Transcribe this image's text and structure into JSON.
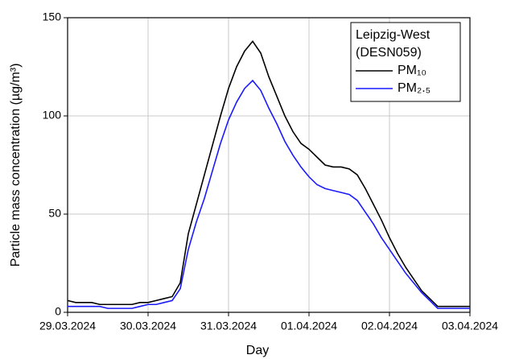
{
  "chart_data": {
    "type": "line",
    "x_label": "Day",
    "y_label": "Particle mass concentration (µg/m³)",
    "legend_title": [
      "Leipzig-West",
      "(DESN059)"
    ],
    "legend": "upper right",
    "grid": true,
    "xlim": [
      0,
      5
    ],
    "xticks": [
      {
        "value": 0,
        "label": "29.03.2024"
      },
      {
        "value": 1,
        "label": "30.03.2024"
      },
      {
        "value": 2,
        "label": "31.03.2024"
      },
      {
        "value": 3,
        "label": "01.04.2024"
      },
      {
        "value": 4,
        "label": "02.04.2024"
      },
      {
        "value": 5,
        "label": "03.04.2024"
      }
    ],
    "ylim": [
      0,
      150
    ],
    "yticks": [
      0,
      50,
      100,
      150
    ],
    "x": [
      0,
      0.1,
      0.2,
      0.3,
      0.4,
      0.5,
      0.6,
      0.7,
      0.8,
      0.9,
      1.0,
      1.1,
      1.2,
      1.3,
      1.4,
      1.5,
      1.6,
      1.7,
      1.8,
      1.9,
      2.0,
      2.1,
      2.2,
      2.3,
      2.4,
      2.5,
      2.6,
      2.7,
      2.8,
      2.9,
      3.0,
      3.1,
      3.2,
      3.3,
      3.4,
      3.5,
      3.6,
      3.7,
      3.8,
      3.9,
      4.0,
      4.1,
      4.2,
      4.3,
      4.4,
      4.5,
      4.6,
      4.7,
      4.8,
      4.9,
      5.0
    ],
    "series": [
      {
        "name": "PM₁₀",
        "color": "#000000",
        "values": [
          6,
          5,
          5,
          5,
          4,
          4,
          4,
          4,
          4,
          5,
          5,
          6,
          7,
          8,
          15,
          40,
          55,
          70,
          85,
          100,
          114,
          125,
          133,
          138,
          132,
          120,
          110,
          100,
          92,
          86,
          83,
          79,
          75,
          74,
          74,
          73,
          70,
          63,
          55,
          47,
          38,
          30,
          23,
          17,
          11,
          7,
          3,
          3,
          3,
          3,
          3
        ]
      },
      {
        "name": "PM₂.₅",
        "color": "#1a1aff",
        "values": [
          3,
          3,
          3,
          3,
          3,
          2,
          2,
          2,
          2,
          3,
          4,
          4,
          5,
          6,
          12,
          32,
          46,
          58,
          72,
          86,
          98,
          107,
          114,
          118,
          113,
          104,
          96,
          87,
          80,
          74,
          69,
          65,
          63,
          62,
          61,
          60,
          57,
          51,
          45,
          38,
          32,
          26,
          20,
          15,
          10,
          6,
          2,
          2,
          2,
          2,
          2
        ]
      }
    ]
  }
}
